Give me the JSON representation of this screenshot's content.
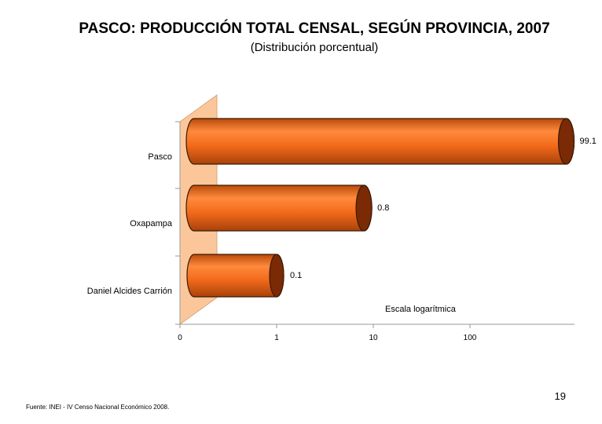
{
  "slide": {
    "page_number": "19",
    "source": "Fuente: INEI - IV Censo Nacional Económico 2008."
  },
  "chart_data": {
    "type": "bar",
    "orientation": "horizontal",
    "title": "PASCO: PRODUCCIÓN TOTAL CENSAL, SEGÚN PROVINCIA, 2007",
    "subtitle": "(Distribución porcentual)",
    "categories": [
      "Pasco",
      "Oxapampa",
      "Daniel Alcides Carrión"
    ],
    "values": [
      99.1,
      0.8,
      0.1
    ],
    "data_labels": [
      "99.1",
      "0.8",
      "0.1"
    ],
    "x_tick_labels": [
      "0",
      "1",
      "10",
      "100"
    ],
    "scale": "log",
    "scale_note": "Escala logarítmica",
    "colors": {
      "bar_front": "#f26a1b",
      "bar_light": "#ff8a3d",
      "bar_dark": "#b84a0a",
      "bar_cap": "#7a2a05",
      "wall": "#fbc79a",
      "wall_edge": "#d9a57a"
    }
  }
}
